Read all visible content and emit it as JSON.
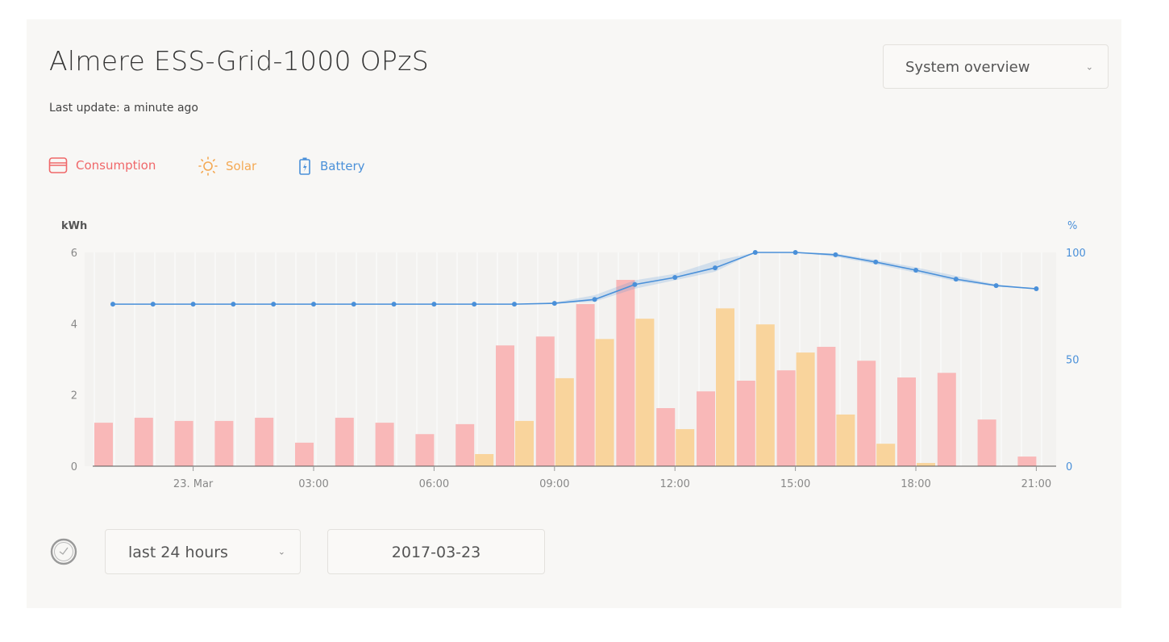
{
  "header": {
    "title": "Almere ESS-Grid-1000 OPzS",
    "last_update": "Last update: a minute ago",
    "view_select": "System overview"
  },
  "legend": [
    {
      "label": "Consumption",
      "color": "#f0686a",
      "icon": "consumption-icon"
    },
    {
      "label": "Solar",
      "color": "#f4a954",
      "icon": "sun-icon"
    },
    {
      "label": "Battery",
      "color": "#4a90d9",
      "icon": "battery-icon"
    }
  ],
  "footer": {
    "range_select": "last 24 hours",
    "date": "2017-03-23",
    "icon": "clock-icon"
  },
  "chart_data": {
    "type": "bar",
    "ylabel": "kWh",
    "y2label": "%",
    "ylim": [
      0,
      6
    ],
    "y2lim": [
      0,
      100
    ],
    "yticks": [
      "0",
      "2",
      "4",
      "6"
    ],
    "y2ticks": [
      "0",
      "50",
      "100"
    ],
    "hours": [
      22,
      23,
      0,
      1,
      2,
      3,
      4,
      5,
      6,
      7,
      8,
      9,
      10,
      11,
      12,
      13,
      14,
      15,
      16,
      17,
      18,
      19,
      20,
      21
    ],
    "xticks": [
      {
        "hour": 0,
        "label": "23. Mar"
      },
      {
        "hour": 3,
        "label": "03:00"
      },
      {
        "hour": 6,
        "label": "06:00"
      },
      {
        "hour": 9,
        "label": "09:00"
      },
      {
        "hour": 12,
        "label": "12:00"
      },
      {
        "hour": 15,
        "label": "15:00"
      },
      {
        "hour": 18,
        "label": "18:00"
      },
      {
        "hour": 21,
        "label": "21:00"
      }
    ],
    "series": [
      {
        "name": "Consumption",
        "color": "#f9b8b8",
        "values": [
          1.22,
          1.36,
          1.27,
          1.27,
          1.36,
          0.66,
          1.36,
          1.22,
          0.9,
          1.18,
          3.39,
          3.64,
          4.55,
          5.23,
          1.63,
          2.1,
          2.4,
          2.69,
          3.35,
          2.96,
          2.49,
          2.62,
          1.31,
          0.27
        ]
      },
      {
        "name": "Solar",
        "color": "#f9d49c",
        "values": [
          0,
          0,
          0,
          0,
          0,
          0,
          0,
          0,
          0,
          0.34,
          1.27,
          2.47,
          3.57,
          4.14,
          1.04,
          4.43,
          3.98,
          3.19,
          1.45,
          0.63,
          0.09,
          0,
          0,
          0
        ]
      },
      {
        "name": "Battery",
        "color": "#4a90d9",
        "axis": "right",
        "values": [
          75.8,
          75.8,
          75.8,
          75.8,
          75.8,
          75.8,
          75.8,
          75.8,
          75.8,
          75.8,
          75.8,
          76.2,
          78,
          85,
          88.3,
          92.8,
          100,
          100,
          98.9,
          95.5,
          91.7,
          87.5,
          84.5,
          83
        ],
        "range_max": [
          75.8,
          75.8,
          75.8,
          75.8,
          75.8,
          75.8,
          75.8,
          75.8,
          75.8,
          75.8,
          75.8,
          76.6,
          80,
          87,
          90,
          96,
          100,
          100,
          99.5,
          96.5,
          93,
          89,
          85,
          83
        ],
        "range_min": [
          75.8,
          75.8,
          75.8,
          75.8,
          75.8,
          75.8,
          75.8,
          75.8,
          75.8,
          75.8,
          75.8,
          76,
          77,
          83,
          87,
          91,
          100,
          100,
          98,
          94.5,
          90.5,
          86.5,
          84,
          83
        ]
      }
    ]
  }
}
